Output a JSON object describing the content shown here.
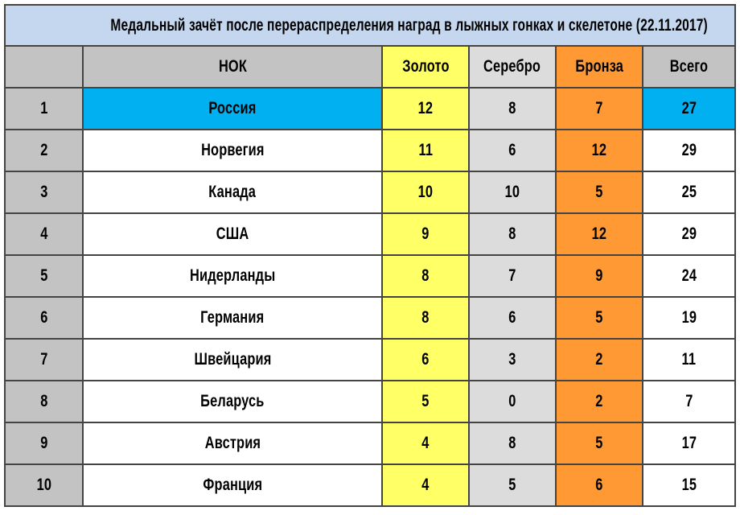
{
  "chart_data": {
    "type": "table",
    "title": "Медальный зачёт после перераспределения наград в лыжных гонках и скелетоне (22.11.2017)",
    "columns": [
      "",
      "НОК",
      "Золото",
      "Серебро",
      "Бронза",
      "Всего"
    ],
    "rows": [
      {
        "rank": "1",
        "noc": "Россия",
        "gold": 12,
        "silver": 8,
        "bronze": 7,
        "total": 27,
        "highlight": true
      },
      {
        "rank": "2",
        "noc": "Норвегия",
        "gold": 11,
        "silver": 6,
        "bronze": 12,
        "total": 29
      },
      {
        "rank": "3",
        "noc": "Канада",
        "gold": 10,
        "silver": 10,
        "bronze": 5,
        "total": 25
      },
      {
        "rank": "4",
        "noc": "США",
        "gold": 9,
        "silver": 8,
        "bronze": 12,
        "total": 29
      },
      {
        "rank": "5",
        "noc": "Нидерланды",
        "gold": 8,
        "silver": 7,
        "bronze": 9,
        "total": 24
      },
      {
        "rank": "6",
        "noc": "Германия",
        "gold": 8,
        "silver": 6,
        "bronze": 5,
        "total": 19
      },
      {
        "rank": "7",
        "noc": "Швейцария",
        "gold": 6,
        "silver": 3,
        "bronze": 2,
        "total": 11
      },
      {
        "rank": "8",
        "noc": "Беларусь",
        "gold": 5,
        "silver": 0,
        "bronze": 2,
        "total": 7
      },
      {
        "rank": "9",
        "noc": "Австрия",
        "gold": 4,
        "silver": 8,
        "bronze": 5,
        "total": 17
      },
      {
        "rank": "10",
        "noc": "Франция",
        "gold": 4,
        "silver": 5,
        "bronze": 6,
        "total": 15
      }
    ],
    "colors": {
      "title_bg": "#c5d7ee",
      "header_bg": "#c3c3c3",
      "gold": "#ffff66",
      "silver": "#dcdcdc",
      "bronze": "#ff9933",
      "highlight": "#00b0f0"
    }
  }
}
